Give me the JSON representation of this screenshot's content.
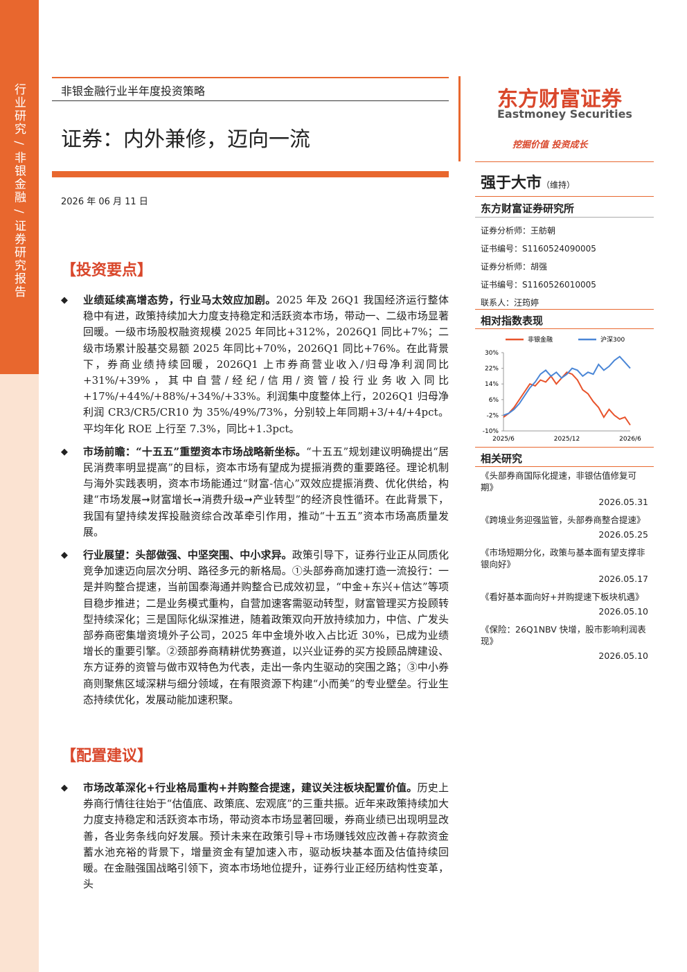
{
  "sidebar": {
    "text": "行业研究 / 非银金融 / 证券研究报告"
  },
  "header": {
    "series_title": "非银金融行业半年度投资策略",
    "title": "证券：内外兼修，迈向一流",
    "date": "2026 年 06 月 11 日"
  },
  "sections": [
    {
      "heading": "【投资要点】",
      "bullets": [
        {
          "lead": "业绩延续高增态势，行业马太效应加剧。",
          "text": "2025 年及 26Q1 我国经济运行整体稳中有进，政策持续加大力度支持稳定和活跃资本市场，带动一、二级市场显著回暖。一级市场股权融资规模 2025 年同比+312%，2026Q1 同比+7%；二级市场累计股基交易额 2025 年同比+70%，2026Q1 同比+76%。在此背景下，券商业绩持续回暖，2026Q1 上市券商营业收入/归母净利润同比+31%/+39%，其中自营/经纪/信用/资管/投行业务收入同比+17%/+44%/+88%/+34%/+33%。利润集中度整体上行，2026Q1 归母净利润 CR3/CR5/CR10 为 35%/49%/73%，分别较上年同期+3/+4/+4pct。平均年化 ROE 上行至 7.3%，同比+1.3pct。"
        },
        {
          "lead": "市场前瞻：“十五五”重塑资本市场战略新坐标。",
          "text": "“十五五”规划建议明确提出“居民消费率明显提高”的目标，资本市场有望成为提振消费的重要路径。理论机制与海外实践表明，资本市场能通过“财富-信心”双效应提振消费、优化供给，构建“市场发展➞财富增长➞消费升级➞产业转型”的经济良性循环。在此背景下，我国有望持续发挥投融资综合改革牵引作用，推动“十五五”资本市场高质量发展。"
        },
        {
          "lead": "行业展望：头部做强、中坚突围、中小求异。",
          "text": "政策引导下，证券行业正从同质化竞争加速迈向层次分明、路径多元的新格局。①头部券商加速打造一流投行：一是并购整合提速，当前国泰海通并购整合已成效初显，“中金+东兴+信达”等项目稳步推进；二是业务模式重构，自营加速客需驱动转型，财富管理买方投顾转型持续深化；三是国际化纵深推进，随着政策双向开放持续加力，中信、广发头部券商密集增资境外子公司，2025 年中金境外收入占比近 30%，已成为业绩增长的重要引擎。②颈部券商精耕优势赛道，以兴业证券的买方投顾品牌建设、东方证券的资管与做市双特色为代表，走出一条内生驱动的突围之路；③中小券商则聚焦区域深耕与细分领域，在有限资源下构建“小而美”的专业壁垒。行业生态持续优化，发展动能加速积聚。"
        }
      ]
    },
    {
      "heading": "【配置建议】",
      "bullets": [
        {
          "lead": "市场改革深化+行业格局重构+并购整合提速，建议关注板块配置价值。",
          "text": "历史上券商行情往往始于“估值底、政策底、宏观底”的三重共振。近年来政策持续加大力度支持稳定和活跃资本市场，带动资本市场显著回暖，券商业绩已出现明显改善，各业务条线向好发展。预计未来在政策引导+市场赚钱效应改善+存款资金蓄水池充裕的背景下，增量资金有望加速入市，驱动板块基本面及估值持续回暖。在金融强国战略引领下，资本市场地位提升，证券行业正经历结构性变革，头"
        }
      ]
    }
  ],
  "brand": {
    "name": "东方财富证券",
    "english": "Eastmoney Securities",
    "slogan": "挖掘价值 投资成长"
  },
  "rating": {
    "text": "强于大市",
    "note": "（维持）"
  },
  "institute": "东方财富证券研究所",
  "analysts": [
    "证券分析师：王舫朝",
    "证书编号：S1160524090005",
    "证券分析师：胡强",
    "证书编号：S1160526010005",
    "联系人：汪筠婷"
  ],
  "chart_heading": "相对指数表现",
  "chart_data": {
    "type": "line",
    "categories": [
      "2025/6",
      null,
      null,
      null,
      null,
      null,
      null,
      null,
      null,
      null,
      null,
      null,
      "2025/12",
      null,
      null,
      null,
      null,
      null,
      null,
      null,
      null,
      null,
      null,
      null,
      "2026/6"
    ],
    "series": [
      {
        "name": "非银金融",
        "color": "#e8532b",
        "values": [
          -3,
          -1,
          2,
          6,
          10,
          14,
          13,
          16,
          15,
          18,
          14,
          17,
          20,
          19,
          16,
          11,
          9,
          5,
          2,
          -3,
          1,
          -2,
          -4,
          -3,
          -7
        ]
      },
      {
        "name": "沪深300",
        "color": "#4a86d6",
        "values": [
          -2,
          -1,
          1,
          4,
          8,
          12,
          15,
          19,
          21,
          18,
          20,
          17,
          19,
          22,
          21,
          18,
          20,
          19,
          24,
          21,
          23,
          26,
          28,
          25,
          22
        ]
      }
    ],
    "ylim": [
      -10,
      30
    ],
    "yticks": [
      {
        "value": -10,
        "label": "-10%"
      },
      {
        "value": -2,
        "label": "-2%"
      },
      {
        "value": 6,
        "label": "6%"
      },
      {
        "value": 14,
        "label": "14%"
      },
      {
        "value": 22,
        "label": "22%"
      },
      {
        "value": 30,
        "label": "30%"
      }
    ]
  },
  "related": {
    "heading": "相关研究",
    "items": [
      {
        "title": "《头部券商国际化提速，非银估值修复可期》",
        "date": "2026.05.31"
      },
      {
        "title": "《跨境业务迎强监管，头部券商整合提速》",
        "date": "2026.05.25"
      },
      {
        "title": "《市场短期分化，政策与基本面有望支撑非银向好》",
        "date": "2026.05.17"
      },
      {
        "title": "《看好基本面向好+并购提速下板块机遇》",
        "date": "2026.05.10"
      },
      {
        "title": "《保险：26Q1NBV 快增，股市影响利润表现》",
        "date": "2026.05.10"
      }
    ]
  }
}
